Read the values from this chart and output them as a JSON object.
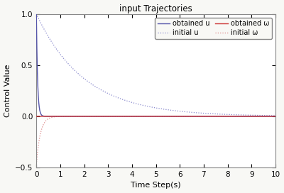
{
  "title": "input Trajectories",
  "xlabel": "Time Step(s)",
  "ylabel": "Control Value",
  "xlim": [
    0,
    10
  ],
  "ylim": [
    -0.5,
    1.0
  ],
  "yticks": [
    -0.5,
    0,
    0.5,
    1.0
  ],
  "xticks": [
    0,
    1,
    2,
    3,
    4,
    5,
    6,
    7,
    8,
    9,
    10
  ],
  "color_obtained_u": "#5555aa",
  "color_initial_u": "#8888cc",
  "color_obtained_w": "#cc3333",
  "color_initial_w": "#dd8888",
  "background_color": "#f8f8f5"
}
